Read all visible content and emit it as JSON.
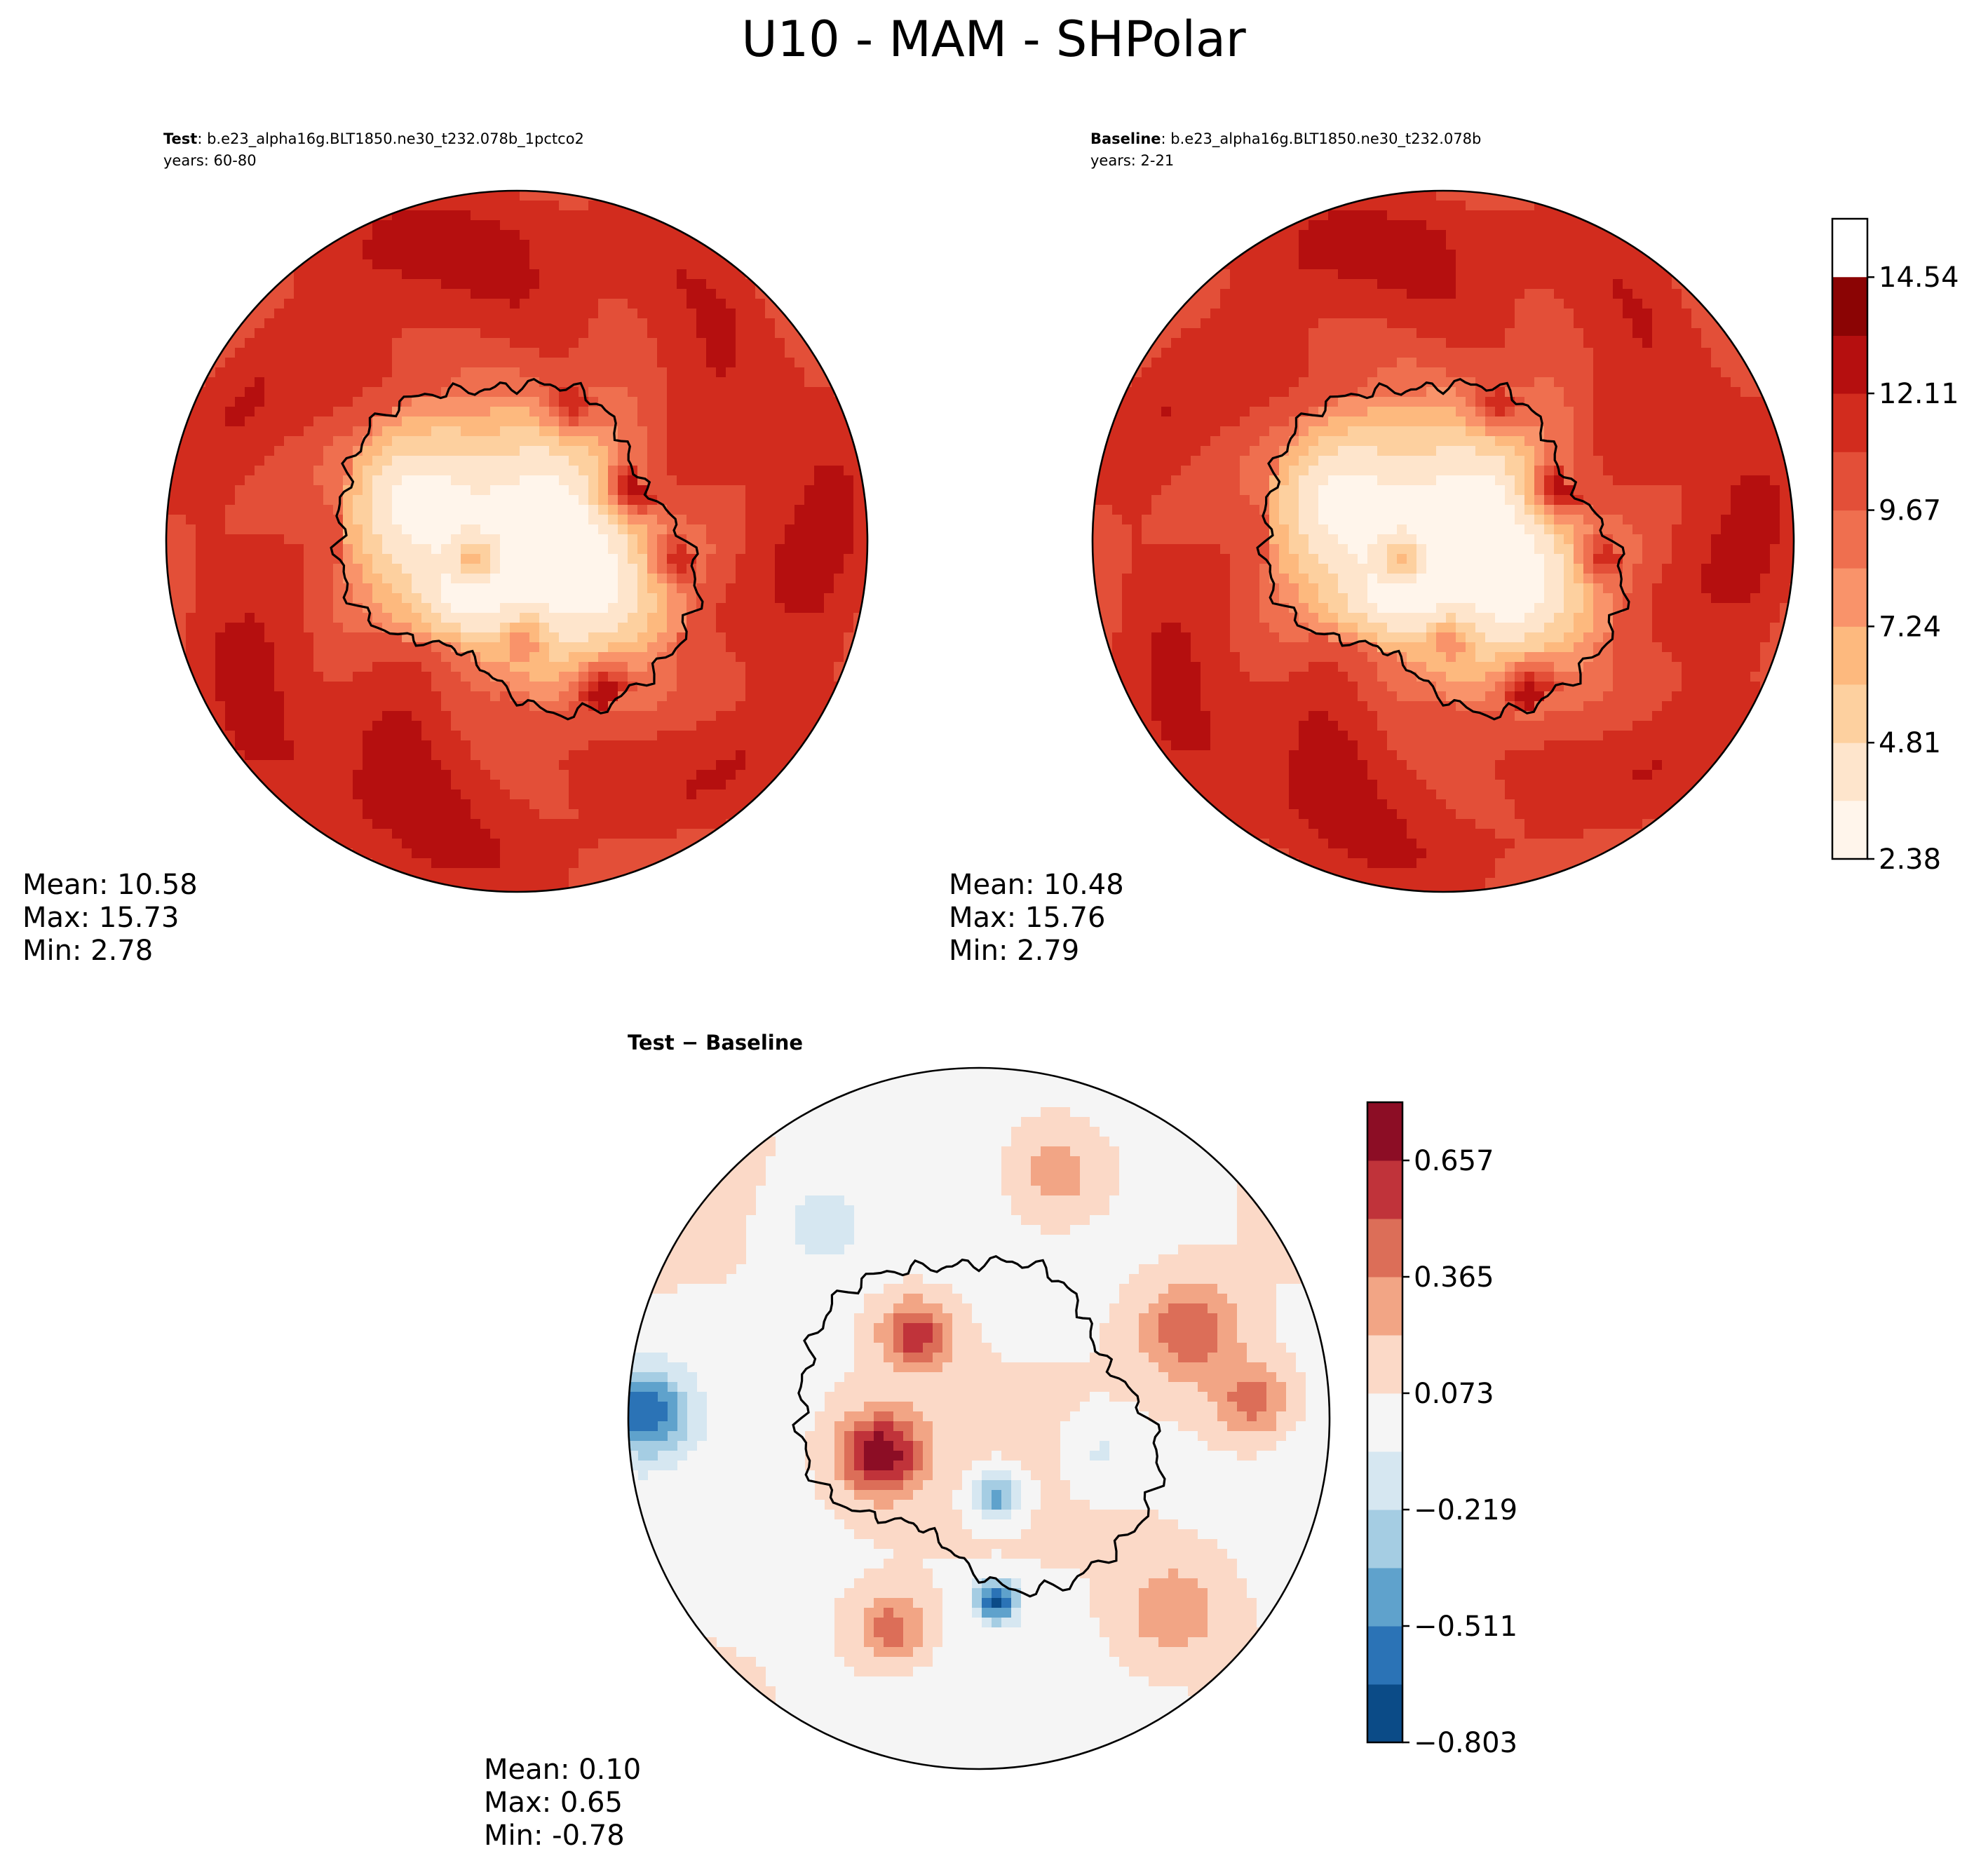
{
  "figure": {
    "title": "U10 - MAM - SHPolar"
  },
  "colors": {
    "reds": [
      "#fff5eb",
      "#fee5cc",
      "#fdd09f",
      "#fdb97e",
      "#f9936a",
      "#ef6f4f",
      "#e34f38",
      "#d22c1e",
      "#b50f0f",
      "#8b0404"
    ],
    "rdbu": [
      "#0b4b87",
      "#2b73b6",
      "#5fa2cc",
      "#a5cde3",
      "#d6e7f1",
      "#f5f5f5",
      "#fbd9c7",
      "#f2a585",
      "#dc6e58",
      "#c0333a",
      "#8c0d25"
    ]
  },
  "chart_data": [
    {
      "type": "heatmap",
      "projection": "south-polar-stereographic",
      "title_prefix": "Test",
      "title_suffix": ": b.e23_alpha16g.BLT1850.ne30_t232.078b_1pctco2",
      "years": "years: 60-80",
      "stats": {
        "mean": "Mean: 10.58",
        "max": "Max: 15.73",
        "min": "Min:  2.78"
      },
      "pattern": "field",
      "shift": 0.0
    },
    {
      "type": "heatmap",
      "projection": "south-polar-stereographic",
      "title_prefix": "Baseline",
      "title_suffix": ": b.e23_alpha16g.BLT1850.ne30_t232.078b",
      "years": "years: 2-21",
      "stats": {
        "mean": "Mean: 10.48",
        "max": "Max: 15.76",
        "min": "Min:  2.79"
      },
      "pattern": "field",
      "shift": -0.1,
      "colorbar": {
        "levels": [
          2.38,
          3.6,
          4.81,
          6.03,
          7.24,
          8.46,
          9.67,
          10.89,
          12.11,
          13.32,
          14.54,
          15.76
        ],
        "tick_labels": [
          "2.38",
          "4.81",
          "7.24",
          "9.67",
          "12.11",
          "14.54"
        ]
      }
    },
    {
      "type": "heatmap",
      "projection": "south-polar-stereographic",
      "title": "Test − Baseline",
      "stats": {
        "mean": "Mean:  0.10",
        "max": "Max:  0.65",
        "min": "Min: -0.78"
      },
      "pattern": "diff",
      "colorbar": {
        "levels": [
          -0.803,
          -0.657,
          -0.511,
          -0.365,
          -0.219,
          -0.073,
          0.073,
          0.219,
          0.365,
          0.511,
          0.657,
          0.803
        ],
        "tick_labels": [
          "−0.803",
          "−0.511",
          "−0.219",
          "0.073",
          "0.365",
          "0.657"
        ]
      }
    }
  ]
}
